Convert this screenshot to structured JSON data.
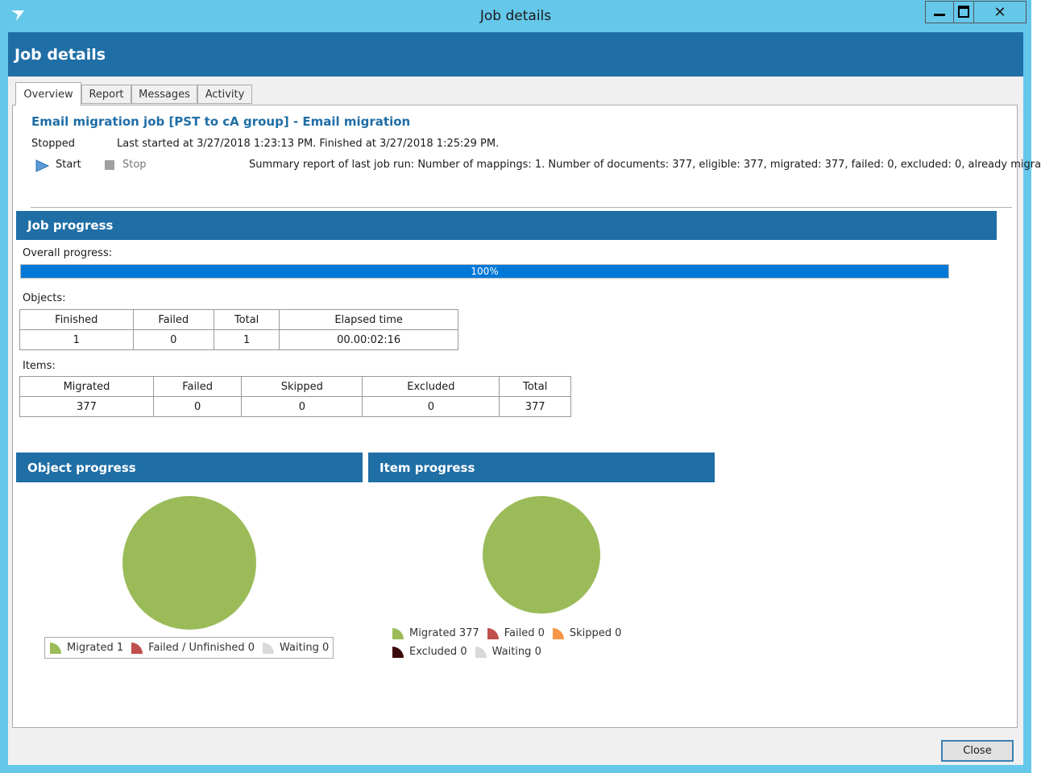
{
  "window": {
    "title": "Job details"
  },
  "header": {
    "title": "Job details"
  },
  "tabs": [
    "Overview",
    "Report",
    "Messages",
    "Activity"
  ],
  "overview": {
    "job_title": "Email migration job [PST to cA group] - Email migration",
    "status": "Stopped",
    "last_run": "Last started at 3/27/2018 1:23:13 PM. Finished at 3/27/2018 1:25:29 PM.",
    "start": "Start",
    "stop": "Stop",
    "summary": "Summary report of last job run: Number of mappings: 1. Number of documents: 377, eligible: 377, migrated: 377, failed: 0, excluded: 0, already migra"
  },
  "job_progress": {
    "title": "Job progress",
    "overall_label": "Overall progress:",
    "overall_progress": {
      "value": 100,
      "label": "100%"
    },
    "objects_label": "Objects:",
    "objects": {
      "headers": [
        "Finished",
        "Failed",
        "Total",
        "Elapsed time"
      ],
      "rows": [
        [
          1,
          0,
          1,
          "00.00:02:16"
        ]
      ]
    },
    "items_label": "Items:",
    "items": {
      "headers": [
        "Migrated",
        "Failed",
        "Skipped",
        "Excluded",
        "Total"
      ],
      "rows": [
        [
          377,
          0,
          0,
          0,
          377
        ]
      ]
    }
  },
  "chart_data": [
    {
      "type": "pie",
      "title": "Object progress",
      "categories": [
        "Migrated",
        "Failed / Unfinished",
        "Waiting"
      ],
      "values": [
        1,
        0,
        0
      ],
      "colors": [
        "#9bbb59",
        "#c0504d",
        "#d9d9d9"
      ]
    },
    {
      "type": "pie",
      "title": "Item progress",
      "categories": [
        "Migrated",
        "Failed",
        "Skipped",
        "Excluded",
        "Waiting"
      ],
      "values": [
        377,
        0,
        0,
        0,
        0
      ],
      "colors": [
        "#9bbb59",
        "#c0504d",
        "#f79646",
        "#3d0a0a",
        "#d9d9d9"
      ]
    }
  ],
  "buttons": {
    "close": "Close"
  }
}
